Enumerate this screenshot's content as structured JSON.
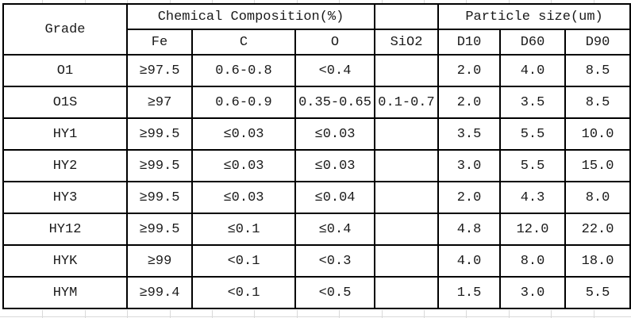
{
  "colors": {
    "background": "#ffffff",
    "table_border": "#000000",
    "text": "#1a1a1a",
    "excel_gridline": "#d9d9d9"
  },
  "chart_data": {
    "type": "table",
    "header_groups": [
      {
        "label": "Grade",
        "colspan": 1,
        "rowspan": 2
      },
      {
        "label": "Chemical Composition(%)",
        "colspan": 3,
        "rowspan": 1
      },
      {
        "label": "",
        "colspan": 1,
        "rowspan": 1
      },
      {
        "label": "Particle size(um)",
        "colspan": 3,
        "rowspan": 1
      }
    ],
    "columns": [
      "Grade",
      "Fe",
      "C",
      "O",
      "SiO2",
      "D10",
      "D60",
      "D90"
    ],
    "sub_headers": [
      "Fe",
      "C",
      "O",
      "SiO2",
      "D10",
      "D60",
      "D90"
    ],
    "rows": [
      [
        "O1",
        "≥97.5",
        "0.6-0.8",
        "<0.4",
        "",
        "2.0",
        "4.0",
        "8.5"
      ],
      [
        "O1S",
        "≥97",
        "0.6-0.9",
        "0.35-0.65",
        "0.1-0.7",
        "2.0",
        "3.5",
        "8.5"
      ],
      [
        "HY1",
        "≥99.5",
        "≤0.03",
        "≤0.03",
        "",
        "3.5",
        "5.5",
        "10.0"
      ],
      [
        "HY2",
        "≥99.5",
        "≤0.03",
        "≤0.03",
        "",
        "3.0",
        "5.5",
        "15.0"
      ],
      [
        "HY3",
        "≥99.5",
        "≤0.03",
        "≤0.04",
        "",
        "2.0",
        "4.3",
        "8.0"
      ],
      [
        "HY12",
        "≥99.5",
        "≤0.1",
        "≤0.4",
        "",
        "4.8",
        "12.0",
        "22.0"
      ],
      [
        "HYK",
        "≥99",
        "<0.1",
        "<0.3",
        "",
        "4.0",
        "8.0",
        "18.0"
      ],
      [
        "HYM",
        "≥99.4",
        "<0.1",
        "<0.5",
        "",
        "1.5",
        "3.0",
        "5.5"
      ]
    ]
  }
}
